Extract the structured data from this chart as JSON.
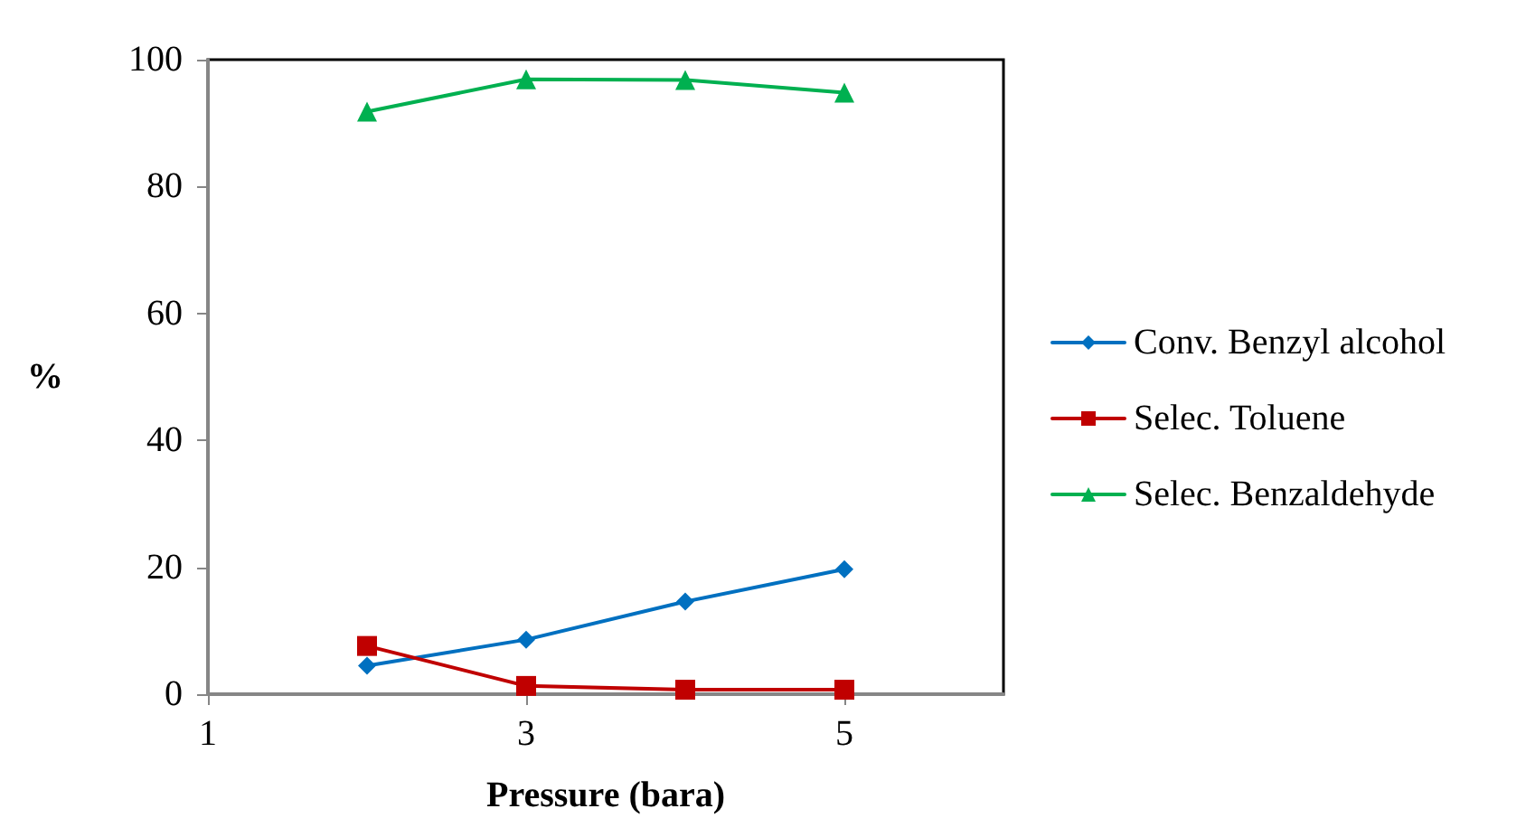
{
  "chart_data": {
    "type": "line",
    "xlabel": "Pressure (bara)",
    "ylabel": "%",
    "x": [
      2,
      3,
      4,
      5
    ],
    "xlim": [
      1,
      6
    ],
    "xticks": [
      1,
      3,
      5
    ],
    "ylim": [
      0,
      100
    ],
    "yticks": [
      0,
      20,
      40,
      60,
      80,
      100
    ],
    "grid": false,
    "legend": "right",
    "series": [
      {
        "name": "Conv. Benzyl alcohol",
        "color": "#0070c0",
        "marker": "diamond",
        "values": [
          4.5,
          8.6,
          14.6,
          19.7
        ]
      },
      {
        "name": "Selec. Toluene",
        "color": "#c00000",
        "marker": "square",
        "values": [
          7.6,
          1.3,
          0.7,
          0.7
        ]
      },
      {
        "name": "Selec. Benzaldehyde",
        "color": "#00b050",
        "marker": "triangle",
        "values": [
          91.8,
          96.9,
          96.8,
          94.8
        ]
      }
    ]
  }
}
